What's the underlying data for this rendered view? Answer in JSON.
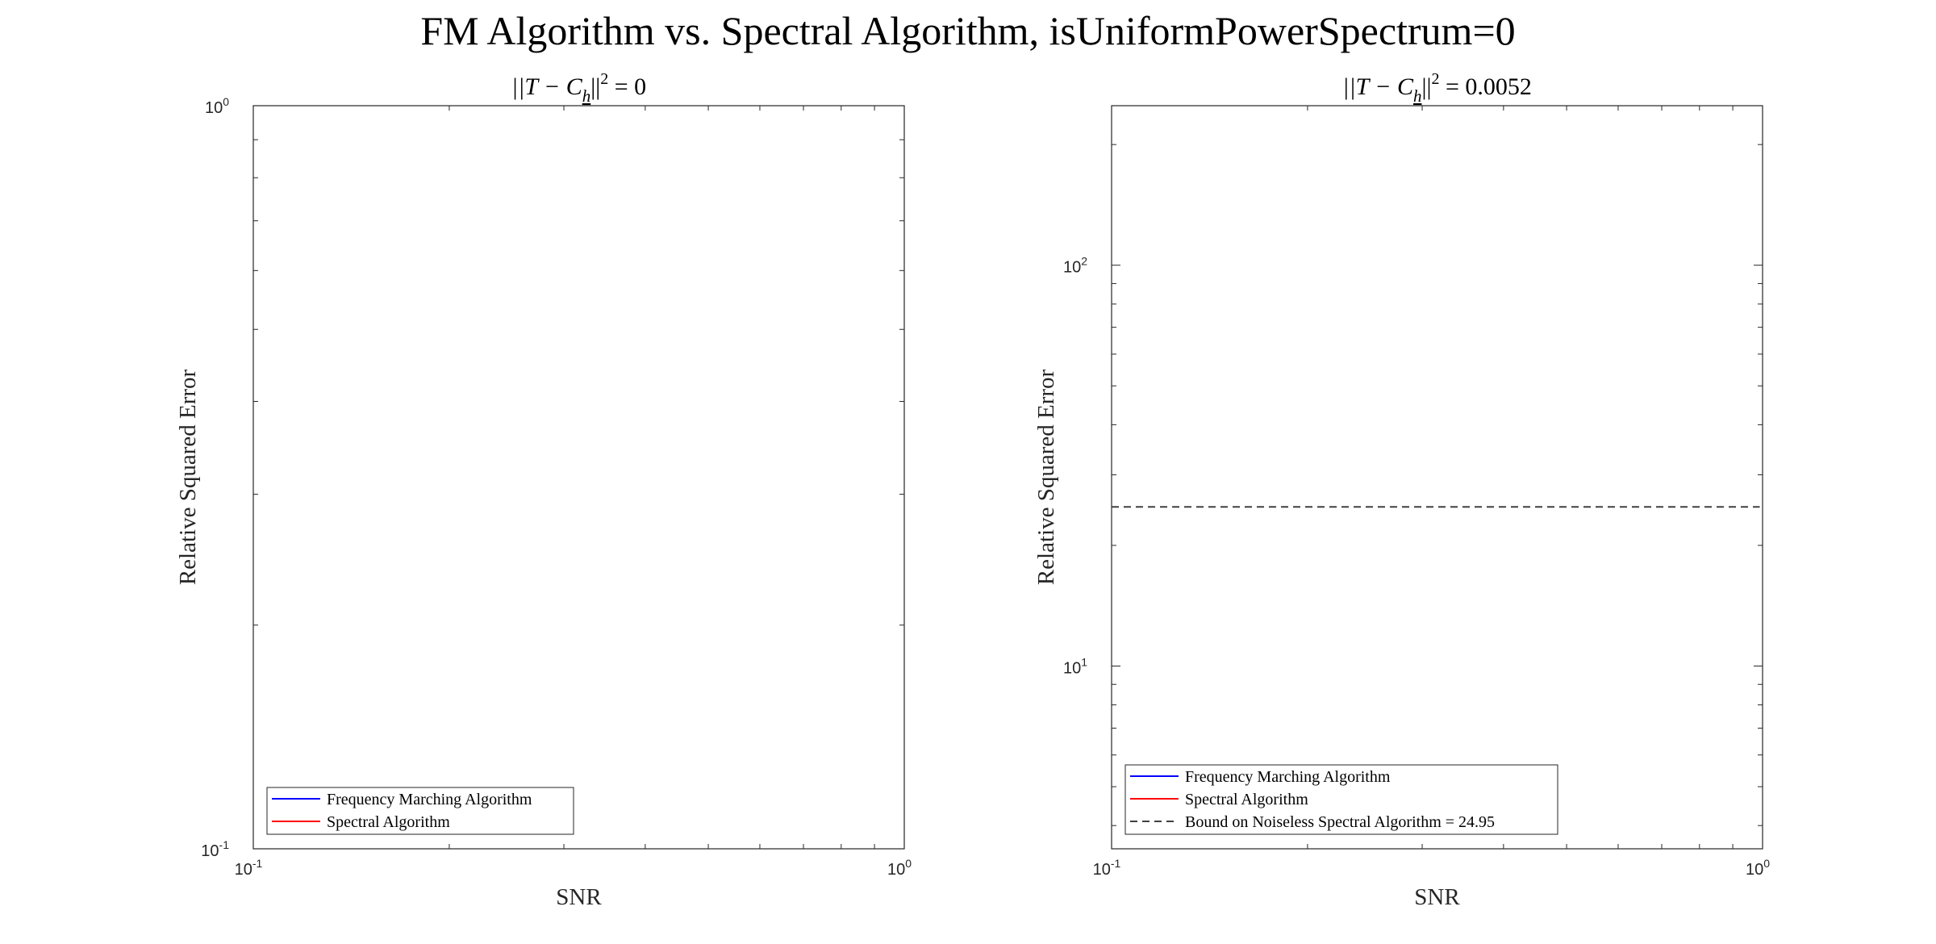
{
  "figure_title": "FM Algorithm vs. Spectral Algorithm, isUniformPowerSpectrum=0",
  "chart_data": [
    {
      "type": "line",
      "title": "||T − C_h||² = 0",
      "title_parts": {
        "norm": "||T − C",
        "sub": "h",
        "close": "||",
        "exp": "2",
        "rhs": " = 0"
      },
      "xlabel": "SNR",
      "ylabel": "Relative Squared Error",
      "xscale": "log",
      "yscale": "log",
      "xlim": [
        0.1,
        1
      ],
      "ylim": [
        0.1,
        1
      ],
      "xticks": [
        {
          "base": "10",
          "exp": "-1",
          "value": 0.1
        },
        {
          "base": "10",
          "exp": "0",
          "value": 1
        }
      ],
      "yticks": [
        {
          "base": "10",
          "exp": "-1",
          "value": 0.1
        },
        {
          "base": "10",
          "exp": "0",
          "value": 1
        }
      ],
      "grid": false,
      "legend_position": "bottom-left",
      "series": [
        {
          "name": "Frequency Marching Algorithm",
          "color": "#0000ff",
          "dash": "solid",
          "x": [],
          "y": []
        },
        {
          "name": "Spectral Algorithm",
          "color": "#ff0000",
          "dash": "solid",
          "x": [],
          "y": []
        }
      ]
    },
    {
      "type": "line",
      "title": "||T − C_h||² = 0.0052",
      "title_parts": {
        "norm": "||T − C",
        "sub": "h",
        "close": "||",
        "exp": "2",
        "rhs": " = 0.0052"
      },
      "xlabel": "SNR",
      "ylabel": "Relative Squared Error",
      "xscale": "log",
      "yscale": "log",
      "xlim": [
        0.1,
        1
      ],
      "ylim": [
        3.5,
        250
      ],
      "xticks": [
        {
          "base": "10",
          "exp": "-1",
          "value": 0.1
        },
        {
          "base": "10",
          "exp": "0",
          "value": 1
        }
      ],
      "yticks": [
        {
          "base": "10",
          "exp": "1",
          "value": 10
        },
        {
          "base": "10",
          "exp": "2",
          "value": 100
        }
      ],
      "grid": false,
      "legend_position": "bottom-left",
      "series": [
        {
          "name": "Frequency Marching Algorithm",
          "color": "#0000ff",
          "dash": "solid",
          "x": [],
          "y": []
        },
        {
          "name": "Spectral Algorithm",
          "color": "#ff0000",
          "dash": "solid",
          "x": [],
          "y": []
        },
        {
          "name": "Bound on Noiseless Spectral Algorithm = 24.95",
          "color": "#404040",
          "dash": "dashed",
          "x": [
            0.1,
            0.99
          ],
          "y": [
            24.95,
            24.95
          ]
        }
      ]
    }
  ]
}
